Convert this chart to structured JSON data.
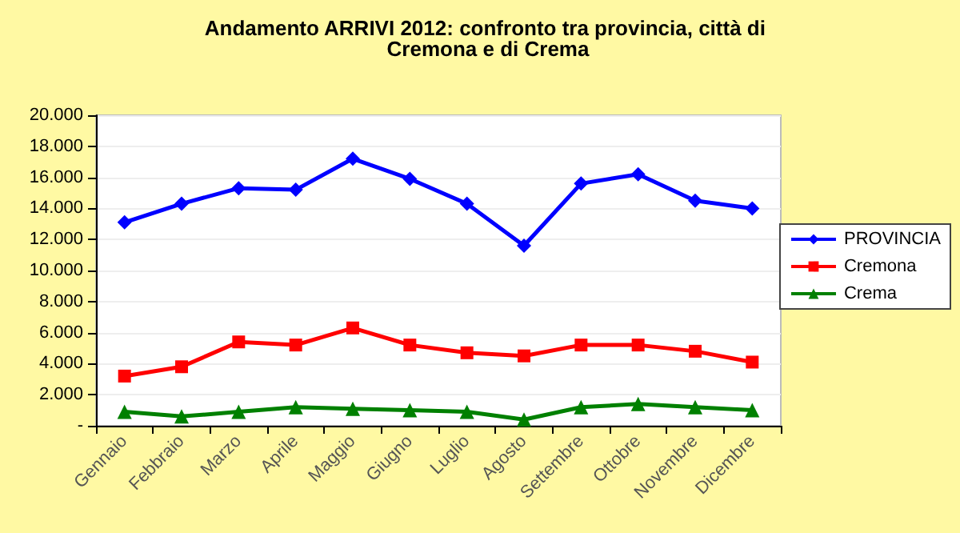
{
  "chart_data": {
    "type": "line",
    "title": "Andamento ARRIVI 2012: confronto tra provincia, città di Cremona e di Crema",
    "categories": [
      "Gennaio",
      "Febbraio",
      "Marzo",
      "Aprile",
      "Maggio",
      "Giugno",
      "Luglio",
      "Agosto",
      "Settembre",
      "Ottobre",
      "Novembre",
      "Dicembre"
    ],
    "series": [
      {
        "name": "PROVINCIA",
        "color": "#0000ff",
        "marker": "diamond",
        "values": [
          13100,
          14300,
          15300,
          15200,
          17200,
          15900,
          14300,
          11600,
          15600,
          16200,
          14500,
          14000
        ]
      },
      {
        "name": "Cremona",
        "color": "#ff0000",
        "marker": "square",
        "values": [
          3200,
          3800,
          5400,
          5200,
          6300,
          5200,
          4700,
          4500,
          5200,
          5200,
          4800,
          4100
        ]
      },
      {
        "name": "Crema",
        "color": "#008000",
        "marker": "triangle",
        "values": [
          900,
          600,
          900,
          1200,
          1100,
          1000,
          900,
          400,
          1200,
          1400,
          1200,
          1000
        ]
      }
    ],
    "ylim": [
      0,
      20000
    ],
    "yticks": [
      {
        "value": 0,
        "label": "-"
      },
      {
        "value": 2000,
        "label": "2.000"
      },
      {
        "value": 4000,
        "label": "4.000"
      },
      {
        "value": 6000,
        "label": "6.000"
      },
      {
        "value": 8000,
        "label": "8.000"
      },
      {
        "value": 10000,
        "label": "10.000"
      },
      {
        "value": 12000,
        "label": "12.000"
      },
      {
        "value": 14000,
        "label": "14.000"
      },
      {
        "value": 16000,
        "label": "16.000"
      },
      {
        "value": 18000,
        "label": "18.000"
      },
      {
        "value": 20000,
        "label": "20.000"
      }
    ],
    "grid": "y",
    "legend": "right",
    "line_style": "solid"
  }
}
